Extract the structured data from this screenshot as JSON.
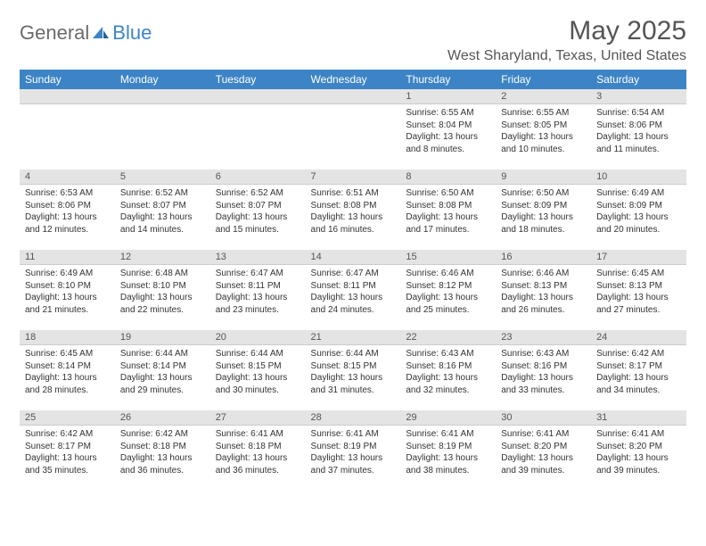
{
  "logo": {
    "general": "General",
    "blue": "Blue"
  },
  "title": "May 2025",
  "location": "West Sharyland, Texas, United States",
  "colors": {
    "header_bg": "#3d84c6",
    "header_text": "#ffffff",
    "daynum_bg": "#e4e4e4",
    "body_text": "#333333",
    "page_bg": "#ffffff"
  },
  "weekdays": [
    "Sunday",
    "Monday",
    "Tuesday",
    "Wednesday",
    "Thursday",
    "Friday",
    "Saturday"
  ],
  "weeks": [
    [
      null,
      null,
      null,
      null,
      {
        "n": "1",
        "sr": "Sunrise: 6:55 AM",
        "ss": "Sunset: 8:04 PM",
        "d1": "Daylight: 13 hours",
        "d2": "and 8 minutes."
      },
      {
        "n": "2",
        "sr": "Sunrise: 6:55 AM",
        "ss": "Sunset: 8:05 PM",
        "d1": "Daylight: 13 hours",
        "d2": "and 10 minutes."
      },
      {
        "n": "3",
        "sr": "Sunrise: 6:54 AM",
        "ss": "Sunset: 8:06 PM",
        "d1": "Daylight: 13 hours",
        "d2": "and 11 minutes."
      }
    ],
    [
      {
        "n": "4",
        "sr": "Sunrise: 6:53 AM",
        "ss": "Sunset: 8:06 PM",
        "d1": "Daylight: 13 hours",
        "d2": "and 12 minutes."
      },
      {
        "n": "5",
        "sr": "Sunrise: 6:52 AM",
        "ss": "Sunset: 8:07 PM",
        "d1": "Daylight: 13 hours",
        "d2": "and 14 minutes."
      },
      {
        "n": "6",
        "sr": "Sunrise: 6:52 AM",
        "ss": "Sunset: 8:07 PM",
        "d1": "Daylight: 13 hours",
        "d2": "and 15 minutes."
      },
      {
        "n": "7",
        "sr": "Sunrise: 6:51 AM",
        "ss": "Sunset: 8:08 PM",
        "d1": "Daylight: 13 hours",
        "d2": "and 16 minutes."
      },
      {
        "n": "8",
        "sr": "Sunrise: 6:50 AM",
        "ss": "Sunset: 8:08 PM",
        "d1": "Daylight: 13 hours",
        "d2": "and 17 minutes."
      },
      {
        "n": "9",
        "sr": "Sunrise: 6:50 AM",
        "ss": "Sunset: 8:09 PM",
        "d1": "Daylight: 13 hours",
        "d2": "and 18 minutes."
      },
      {
        "n": "10",
        "sr": "Sunrise: 6:49 AM",
        "ss": "Sunset: 8:09 PM",
        "d1": "Daylight: 13 hours",
        "d2": "and 20 minutes."
      }
    ],
    [
      {
        "n": "11",
        "sr": "Sunrise: 6:49 AM",
        "ss": "Sunset: 8:10 PM",
        "d1": "Daylight: 13 hours",
        "d2": "and 21 minutes."
      },
      {
        "n": "12",
        "sr": "Sunrise: 6:48 AM",
        "ss": "Sunset: 8:10 PM",
        "d1": "Daylight: 13 hours",
        "d2": "and 22 minutes."
      },
      {
        "n": "13",
        "sr": "Sunrise: 6:47 AM",
        "ss": "Sunset: 8:11 PM",
        "d1": "Daylight: 13 hours",
        "d2": "and 23 minutes."
      },
      {
        "n": "14",
        "sr": "Sunrise: 6:47 AM",
        "ss": "Sunset: 8:11 PM",
        "d1": "Daylight: 13 hours",
        "d2": "and 24 minutes."
      },
      {
        "n": "15",
        "sr": "Sunrise: 6:46 AM",
        "ss": "Sunset: 8:12 PM",
        "d1": "Daylight: 13 hours",
        "d2": "and 25 minutes."
      },
      {
        "n": "16",
        "sr": "Sunrise: 6:46 AM",
        "ss": "Sunset: 8:13 PM",
        "d1": "Daylight: 13 hours",
        "d2": "and 26 minutes."
      },
      {
        "n": "17",
        "sr": "Sunrise: 6:45 AM",
        "ss": "Sunset: 8:13 PM",
        "d1": "Daylight: 13 hours",
        "d2": "and 27 minutes."
      }
    ],
    [
      {
        "n": "18",
        "sr": "Sunrise: 6:45 AM",
        "ss": "Sunset: 8:14 PM",
        "d1": "Daylight: 13 hours",
        "d2": "and 28 minutes."
      },
      {
        "n": "19",
        "sr": "Sunrise: 6:44 AM",
        "ss": "Sunset: 8:14 PM",
        "d1": "Daylight: 13 hours",
        "d2": "and 29 minutes."
      },
      {
        "n": "20",
        "sr": "Sunrise: 6:44 AM",
        "ss": "Sunset: 8:15 PM",
        "d1": "Daylight: 13 hours",
        "d2": "and 30 minutes."
      },
      {
        "n": "21",
        "sr": "Sunrise: 6:44 AM",
        "ss": "Sunset: 8:15 PM",
        "d1": "Daylight: 13 hours",
        "d2": "and 31 minutes."
      },
      {
        "n": "22",
        "sr": "Sunrise: 6:43 AM",
        "ss": "Sunset: 8:16 PM",
        "d1": "Daylight: 13 hours",
        "d2": "and 32 minutes."
      },
      {
        "n": "23",
        "sr": "Sunrise: 6:43 AM",
        "ss": "Sunset: 8:16 PM",
        "d1": "Daylight: 13 hours",
        "d2": "and 33 minutes."
      },
      {
        "n": "24",
        "sr": "Sunrise: 6:42 AM",
        "ss": "Sunset: 8:17 PM",
        "d1": "Daylight: 13 hours",
        "d2": "and 34 minutes."
      }
    ],
    [
      {
        "n": "25",
        "sr": "Sunrise: 6:42 AM",
        "ss": "Sunset: 8:17 PM",
        "d1": "Daylight: 13 hours",
        "d2": "and 35 minutes."
      },
      {
        "n": "26",
        "sr": "Sunrise: 6:42 AM",
        "ss": "Sunset: 8:18 PM",
        "d1": "Daylight: 13 hours",
        "d2": "and 36 minutes."
      },
      {
        "n": "27",
        "sr": "Sunrise: 6:41 AM",
        "ss": "Sunset: 8:18 PM",
        "d1": "Daylight: 13 hours",
        "d2": "and 36 minutes."
      },
      {
        "n": "28",
        "sr": "Sunrise: 6:41 AM",
        "ss": "Sunset: 8:19 PM",
        "d1": "Daylight: 13 hours",
        "d2": "and 37 minutes."
      },
      {
        "n": "29",
        "sr": "Sunrise: 6:41 AM",
        "ss": "Sunset: 8:19 PM",
        "d1": "Daylight: 13 hours",
        "d2": "and 38 minutes."
      },
      {
        "n": "30",
        "sr": "Sunrise: 6:41 AM",
        "ss": "Sunset: 8:20 PM",
        "d1": "Daylight: 13 hours",
        "d2": "and 39 minutes."
      },
      {
        "n": "31",
        "sr": "Sunrise: 6:41 AM",
        "ss": "Sunset: 8:20 PM",
        "d1": "Daylight: 13 hours",
        "d2": "and 39 minutes."
      }
    ]
  ]
}
